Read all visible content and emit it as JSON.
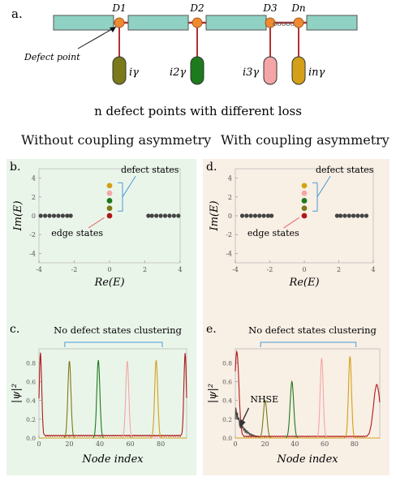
{
  "panel_a": {
    "letter": "a.",
    "defects": [
      {
        "label": "D1",
        "loss": "iγ",
        "color": "#7a7a1a"
      },
      {
        "label": "D2",
        "loss": "i2γ",
        "color": "#1d7a1d"
      },
      {
        "label": "D3",
        "loss": "i3γ",
        "color": "#f4a6a6"
      },
      {
        "label": "Dn",
        "loss": "inγ",
        "color": "#d4a017"
      }
    ],
    "dots": "ooooo",
    "defect_point_label": "Defect point",
    "caption": "n defect points with different loss",
    "colors": {
      "waveguide": "#8fd1c3",
      "node": "#f08a30",
      "line": "#b33030"
    }
  },
  "left_column": {
    "heading": "Without coupling asymmetry",
    "background": "#eaf5ea"
  },
  "right_column": {
    "heading": "With coupling asymmetry",
    "background": "#f8efe5"
  },
  "panel_b": {
    "letter": "b.",
    "defect_label": "defect states",
    "edge_label": "edge states"
  },
  "panel_d": {
    "letter": "d.",
    "defect_label": "defect states",
    "edge_label": "edge states"
  },
  "panel_c": {
    "letter": "c.",
    "annotation": "No defect states clustering"
  },
  "panel_e": {
    "letter": "e.",
    "annotation": "No defect states clustering",
    "nhse_label": "NHSE"
  },
  "chart_data": [
    {
      "id": "b",
      "type": "scatter",
      "xlabel": "Re(E)",
      "ylabel": "Im(E)",
      "xlim": [
        -4,
        4
      ],
      "ylim": [
        -5,
        5
      ],
      "xticks": [
        -4,
        -2,
        0,
        2,
        4
      ],
      "yticks": [
        -4,
        -2,
        0,
        2,
        4
      ],
      "bulk_points": [
        [
          -3.9,
          0
        ],
        [
          -3.65,
          0
        ],
        [
          -3.4,
          0
        ],
        [
          -3.15,
          0
        ],
        [
          -2.9,
          0
        ],
        [
          -2.65,
          0
        ],
        [
          -2.4,
          0
        ],
        [
          -2.2,
          0
        ],
        [
          2.2,
          0
        ],
        [
          2.4,
          0
        ],
        [
          2.65,
          0
        ],
        [
          2.9,
          0
        ],
        [
          3.15,
          0
        ],
        [
          3.4,
          0
        ],
        [
          3.65,
          0
        ],
        [
          3.9,
          0
        ]
      ],
      "defect_points": [
        {
          "x": 0,
          "y": 3.2,
          "color": "#d4a017"
        },
        {
          "x": 0,
          "y": 2.4,
          "color": "#f4a6a6"
        },
        {
          "x": 0,
          "y": 1.6,
          "color": "#1d7a1d"
        },
        {
          "x": 0,
          "y": 0.8,
          "color": "#7a7a1a"
        }
      ],
      "edge_points": [
        {
          "x": 0,
          "y": 0,
          "color": "#b01818"
        }
      ]
    },
    {
      "id": "d",
      "type": "scatter",
      "xlabel": "Re(E)",
      "ylabel": "Im(E)",
      "xlim": [
        -4,
        4
      ],
      "ylim": [
        -5,
        5
      ],
      "xticks": [
        -4,
        -2,
        0,
        2,
        4
      ],
      "yticks": [
        -4,
        -2,
        0,
        2,
        4
      ],
      "bulk_points": [
        [
          -3.6,
          0
        ],
        [
          -3.35,
          0
        ],
        [
          -3.1,
          0
        ],
        [
          -2.85,
          0
        ],
        [
          -2.6,
          0
        ],
        [
          -2.35,
          0
        ],
        [
          -2.1,
          0
        ],
        [
          -1.9,
          0
        ],
        [
          1.9,
          0
        ],
        [
          2.1,
          0
        ],
        [
          2.35,
          0
        ],
        [
          2.6,
          0
        ],
        [
          2.85,
          0
        ],
        [
          3.1,
          0
        ],
        [
          3.35,
          0
        ],
        [
          3.6,
          0
        ]
      ],
      "defect_points": [
        {
          "x": 0,
          "y": 3.2,
          "color": "#d4a017"
        },
        {
          "x": 0,
          "y": 2.4,
          "color": "#f4a6a6"
        },
        {
          "x": 0,
          "y": 1.6,
          "color": "#1d7a1d"
        },
        {
          "x": 0,
          "y": 0.8,
          "color": "#7a7a1a"
        }
      ],
      "edge_points": [
        {
          "x": 0,
          "y": 0,
          "color": "#b01818"
        }
      ]
    },
    {
      "id": "c",
      "type": "line",
      "xlabel": "Node index",
      "ylabel": "|ψ|²",
      "xlim": [
        0,
        97
      ],
      "ylim": [
        0,
        0.95
      ],
      "xticks": [
        0,
        20,
        40,
        60,
        80
      ],
      "yticks": [
        0.0,
        0.2,
        0.4,
        0.6,
        0.8
      ],
      "series": [
        {
          "color": "#b01818",
          "peaks": [
            {
              "x": 1,
              "h": 0.88,
              "w": 0.8
            },
            {
              "x": 96,
              "h": 0.88,
              "w": 0.8
            }
          ],
          "floor": 0.03
        },
        {
          "color": "#7a7a1a",
          "peaks": [
            {
              "x": 20,
              "h": 0.82,
              "w": 1.0
            }
          ]
        },
        {
          "color": "#1d7a1d",
          "peaks": [
            {
              "x": 39,
              "h": 0.83,
              "w": 1.0
            }
          ]
        },
        {
          "color": "#f4a6a6",
          "peaks": [
            {
              "x": 58,
              "h": 0.82,
              "w": 1.0
            }
          ]
        },
        {
          "color": "#d4a017",
          "peaks": [
            {
              "x": 77,
              "h": 0.83,
              "w": 1.0
            }
          ]
        }
      ]
    },
    {
      "id": "e",
      "type": "line",
      "xlabel": "Node index",
      "ylabel": "|ψ|²",
      "xlim": [
        0,
        97
      ],
      "ylim": [
        0,
        0.95
      ],
      "xticks": [
        0,
        20,
        40,
        60,
        80
      ],
      "yticks": [
        0.0,
        0.2,
        0.4,
        0.6,
        0.8
      ],
      "series": [
        {
          "color": "#444444",
          "nhse": true
        },
        {
          "color": "#b01818",
          "peaks": [
            {
              "x": 1,
              "h": 0.9,
              "w": 1.4
            },
            {
              "x": 95,
              "h": 0.55,
              "w": 2.2
            }
          ],
          "floor": 0.02
        },
        {
          "color": "#7a7a1a",
          "peaks": [
            {
              "x": 20,
              "h": 0.4,
              "w": 1.2
            }
          ]
        },
        {
          "color": "#1d7a1d",
          "peaks": [
            {
              "x": 38,
              "h": 0.6,
              "w": 1.2
            }
          ]
        },
        {
          "color": "#f4a6a6",
          "peaks": [
            {
              "x": 58,
              "h": 0.85,
              "w": 1.0
            }
          ]
        },
        {
          "color": "#d4a017",
          "peaks": [
            {
              "x": 77,
              "h": 0.87,
              "w": 1.0
            }
          ]
        }
      ]
    }
  ]
}
